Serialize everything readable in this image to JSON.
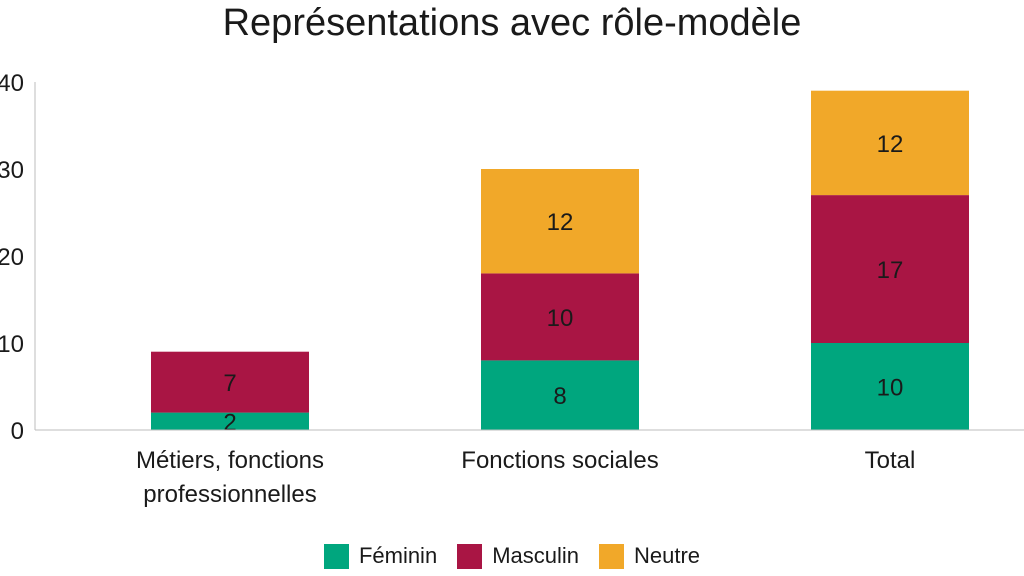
{
  "chart_data": {
    "type": "bar",
    "stacked": true,
    "title": "Représentations avec rôle-modèle",
    "categories": [
      "Métiers, fonctions professionnelles",
      "Fonctions sociales",
      "Total"
    ],
    "category_label_lines": [
      [
        "Métiers, fonctions",
        "professionnelles"
      ],
      [
        "Fonctions sociales"
      ],
      [
        "Total"
      ]
    ],
    "series": [
      {
        "name": "Féminin",
        "color": "#00a67e",
        "values": [
          2,
          8,
          10
        ]
      },
      {
        "name": "Masculin",
        "color": "#a91544",
        "values": [
          7,
          10,
          17
        ]
      },
      {
        "name": "Neutre",
        "color": "#f1a829",
        "values": [
          0,
          12,
          12
        ]
      }
    ],
    "ylim": [
      0,
      40
    ],
    "yticks": [
      "0",
      "10",
      "20",
      "30",
      "40"
    ],
    "xlabel": "",
    "ylabel": "",
    "grid": false,
    "legend_position": "bottom"
  }
}
